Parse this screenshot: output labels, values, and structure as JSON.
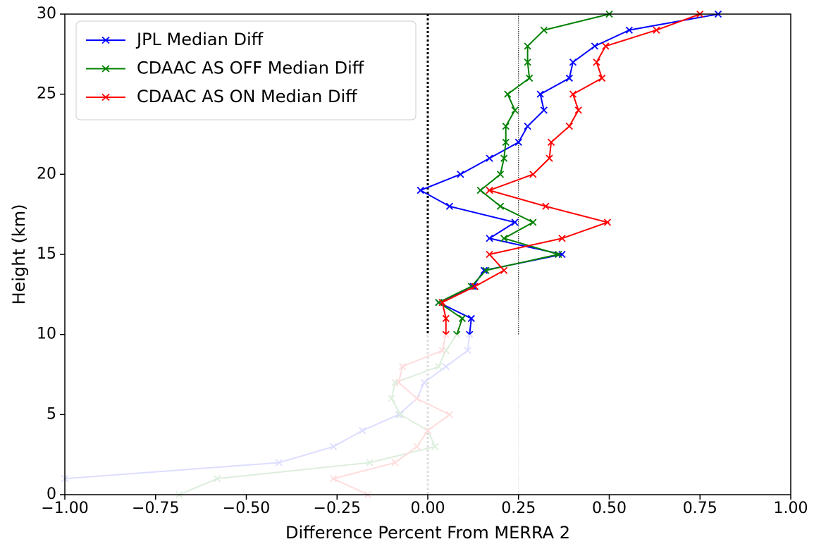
{
  "chart_data": {
    "type": "line",
    "xlabel": "Difference Percent From MERRA 2",
    "ylabel": "Height (km)",
    "y": [
      0,
      1,
      2,
      3,
      4,
      5,
      6,
      7,
      8,
      9,
      10,
      11,
      12,
      13,
      14,
      15,
      16,
      17,
      18,
      19,
      20,
      21,
      22,
      23,
      24,
      25,
      26,
      27,
      28,
      29,
      30
    ],
    "series": [
      {
        "name": "JPL Median Diff",
        "color": "#0000ff",
        "values": [
          null,
          -1.0,
          -0.41,
          -0.26,
          -0.18,
          -0.08,
          -0.03,
          -0.01,
          0.05,
          0.11,
          0.115,
          0.12,
          0.03,
          0.125,
          0.155,
          0.37,
          0.17,
          0.24,
          0.06,
          -0.02,
          0.09,
          0.17,
          0.25,
          0.275,
          0.32,
          0.31,
          0.39,
          0.4,
          0.46,
          0.555,
          0.8
        ]
      },
      {
        "name": "CDAAC AS OFF Median Diff",
        "color": "#008000",
        "values": [
          -0.685,
          -0.58,
          -0.16,
          0.02,
          0.0,
          -0.075,
          -0.1,
          -0.09,
          0.03,
          0.05,
          0.08,
          0.095,
          0.03,
          0.12,
          0.16,
          0.36,
          0.21,
          0.29,
          0.2,
          0.145,
          0.2,
          0.21,
          0.215,
          0.215,
          0.24,
          0.22,
          0.28,
          0.275,
          0.275,
          0.32,
          0.5
        ]
      },
      {
        "name": "CDAAC AS ON Median Diff",
        "color": "#ff0000",
        "values": [
          -0.165,
          -0.26,
          -0.09,
          -0.03,
          0.0,
          0.06,
          -0.03,
          -0.08,
          -0.07,
          0.04,
          0.05,
          0.05,
          0.04,
          0.13,
          0.21,
          0.17,
          0.37,
          0.495,
          0.325,
          0.17,
          0.29,
          0.335,
          0.34,
          0.39,
          0.415,
          0.4,
          0.48,
          0.465,
          0.49,
          0.63,
          0.75
        ]
      }
    ],
    "xlim": [
      -1.0,
      1.0
    ],
    "xticks": [
      {
        "value": -1.0,
        "label": "−1.00"
      },
      {
        "value": -0.75,
        "label": "−0.75"
      },
      {
        "value": -0.5,
        "label": "−0.50"
      },
      {
        "value": -0.25,
        "label": "−0.25"
      },
      {
        "value": 0,
        "label": "0.00"
      },
      {
        "value": 0.25,
        "label": "0.25"
      },
      {
        "value": 0.5,
        "label": "0.50"
      },
      {
        "value": 0.75,
        "label": "0.75"
      },
      {
        "value": 1.0,
        "label": "1.00"
      }
    ],
    "ylim": [
      0,
      30
    ],
    "yticks": [
      0,
      5,
      10,
      15,
      20,
      25,
      30
    ],
    "vlines": [
      0,
      0.25
    ],
    "fade_below": 10,
    "legend": "upper left"
  }
}
